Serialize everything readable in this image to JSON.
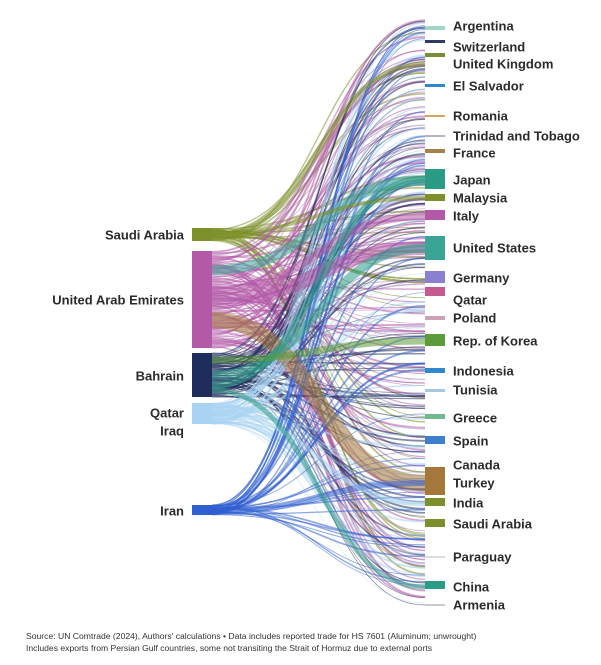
{
  "chart_data": {
    "type": "sankey",
    "sources": [
      {
        "name": "Saudi Arabia",
        "color": "#7b8f2a",
        "share": 0.05
      },
      {
        "name": "United Arab Emirates",
        "color": "#b25aa8",
        "share": 0.34
      },
      {
        "name": "Bahrain",
        "color": "#1f2d5c",
        "share": 0.18
      },
      {
        "name": "Qatar",
        "color": "#a9d3f2",
        "share": 0.09
      },
      {
        "name": "Iraq",
        "color": "#a9d3f2",
        "share": 0.0
      },
      {
        "name": "Iran",
        "color": "#2f5fd0",
        "share": 0.04
      }
    ],
    "targets": [
      {
        "name": "Argentina",
        "color": "#9fd6c4",
        "share": 0.002
      },
      {
        "name": "Switzerland",
        "color": "#2d3a66",
        "share": 0.004
      },
      {
        "name": "United Kingdom",
        "color": "#7a8e3a",
        "share": 0.003
      },
      {
        "name": "El Salvador",
        "color": "#2f88c9",
        "share": 0.002
      },
      {
        "name": "Romania",
        "color": "#cfa65a",
        "share": 0.001
      },
      {
        "name": "Trinidad and Tobago",
        "color": "#b8b0cc",
        "share": 0.001
      },
      {
        "name": "France",
        "color": "#a8804a",
        "share": 0.003
      },
      {
        "name": "Japan",
        "color": "#2c9b86",
        "share": 0.035
      },
      {
        "name": "Malaysia",
        "color": "#7b8f2a",
        "share": 0.008
      },
      {
        "name": "Italy",
        "color": "#b25aa8",
        "share": 0.014
      },
      {
        "name": "United States",
        "color": "#3aa596",
        "share": 0.045
      },
      {
        "name": "Germany",
        "color": "#8a7fd1",
        "share": 0.014
      },
      {
        "name": "Qatar",
        "color": "#c45a8d",
        "share": 0.008
      },
      {
        "name": "Poland",
        "color": "#cda0b8",
        "share": 0.004
      },
      {
        "name": "Rep. of Korea",
        "color": "#5c9b3a",
        "share": 0.016
      },
      {
        "name": "Indonesia",
        "color": "#2f88c9",
        "share": 0.006
      },
      {
        "name": "Tunisia",
        "color": "#a4c8de",
        "share": 0.002
      },
      {
        "name": "Greece",
        "color": "#6dbb8c",
        "share": 0.004
      },
      {
        "name": "Spain",
        "color": "#3e7fce",
        "share": 0.009
      },
      {
        "name": "Canada",
        "color": "#a3783a",
        "share": 0.012
      },
      {
        "name": "Turkey",
        "color": "#a3783a",
        "share": 0.035
      },
      {
        "name": "India",
        "color": "#7b8f2a",
        "share": 0.01
      },
      {
        "name": "Saudi Arabia",
        "color": "#7b8f2a",
        "share": 0.008
      },
      {
        "name": "Paraguay",
        "color": "#dcdcdc",
        "share": 0.001
      },
      {
        "name": "China",
        "color": "#2c9b86",
        "share": 0.014
      },
      {
        "name": "Armenia",
        "color": "#c9c9c9",
        "share": 0.001
      }
    ]
  },
  "footer": {
    "line1": "Source: UN Comtrade (2024), Authors' calculations • Data includes reported trade for HS 7601 (Aluminum; unwrought)",
    "line2": "Includes exports from Persian Gulf countries, some not transiting the Strait of Hormuz due to external ports"
  }
}
